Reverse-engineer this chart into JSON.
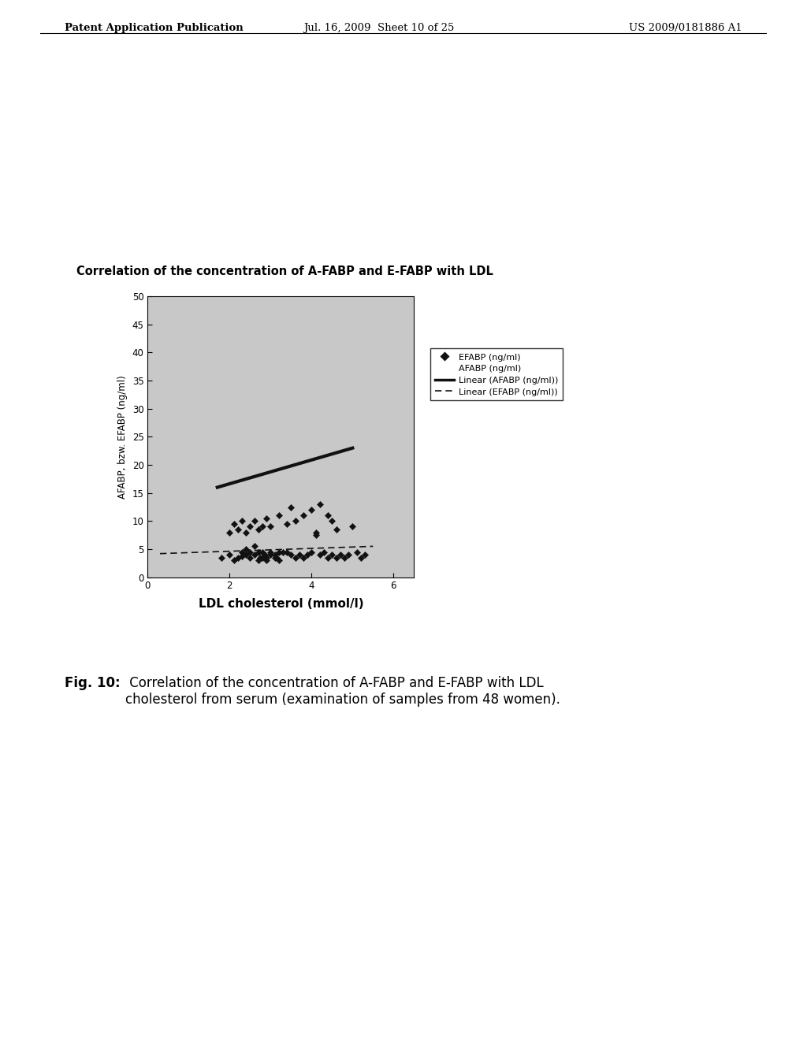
{
  "title": "Correlation of the concentration of A-FABP and E-FABP with LDL",
  "xlabel": "LDL cholesterol (mmol/l)",
  "ylabel": "AFABP, bzw. EFABP (ng/ml)",
  "xlim": [
    0,
    6.5
  ],
  "ylim": [
    0,
    50
  ],
  "xticks": [
    0,
    2,
    4,
    6
  ],
  "yticks": [
    0,
    5,
    10,
    15,
    20,
    25,
    30,
    35,
    40,
    45,
    50
  ],
  "background_color": "#c8c8c8",
  "efabp_x": [
    1.8,
    2.0,
    2.1,
    2.2,
    2.3,
    2.3,
    2.4,
    2.4,
    2.5,
    2.5,
    2.6,
    2.6,
    2.7,
    2.7,
    2.75,
    2.8,
    2.8,
    2.85,
    2.9,
    2.9,
    3.0,
    3.0,
    3.1,
    3.1,
    3.15,
    3.2,
    3.2,
    3.3,
    3.4,
    3.5,
    3.6,
    3.7,
    3.8,
    3.9,
    4.0,
    4.1,
    4.2,
    4.3,
    4.4,
    4.5,
    4.6,
    4.7,
    4.8,
    4.9,
    5.0,
    5.1,
    5.2,
    5.3
  ],
  "efabp_y": [
    3.5,
    4.0,
    3.0,
    3.5,
    4.5,
    3.8,
    5.0,
    4.0,
    3.5,
    4.5,
    5.5,
    4.0,
    3.0,
    4.5,
    3.5,
    4.5,
    3.5,
    4.0,
    3.5,
    3.0,
    4.5,
    4.0,
    3.5,
    4.0,
    3.5,
    4.5,
    3.0,
    4.5,
    4.5,
    4.0,
    3.5,
    4.0,
    3.5,
    4.0,
    4.5,
    7.5,
    4.0,
    4.5,
    3.5,
    4.0,
    3.5,
    4.0,
    3.5,
    4.0,
    9.0,
    4.5,
    3.5,
    4.0
  ],
  "afabp_x": [
    2.0,
    2.1,
    2.2,
    2.3,
    2.4,
    2.5,
    2.6,
    2.7,
    2.8,
    2.9,
    3.0,
    3.2,
    3.4,
    3.5,
    3.6,
    3.8,
    4.0,
    4.1,
    4.2,
    4.4,
    4.5,
    4.6
  ],
  "afabp_y": [
    8.0,
    9.5,
    8.5,
    10.0,
    8.0,
    9.0,
    10.0,
    8.5,
    9.0,
    10.5,
    9.0,
    11.0,
    9.5,
    12.5,
    10.0,
    11.0,
    12.0,
    8.0,
    13.0,
    11.0,
    10.0,
    8.5
  ],
  "afabp_line_x": [
    1.7,
    5.0
  ],
  "afabp_line_y": [
    16.0,
    23.0
  ],
  "efabp_line_x": [
    0.3,
    5.5
  ],
  "efabp_line_y": [
    4.2,
    5.5
  ],
  "legend_efabp": "EFABP (ng/ml)",
  "legend_afabp": "AFABP (ng/ml)",
  "legend_linear_afabp": "Linear (AFABP (ng/ml))",
  "legend_linear_efabp": "Linear (EFABP (ng/ml))",
  "header_left": "Patent Application Publication",
  "header_mid": "Jul. 16, 2009  Sheet 10 of 25",
  "header_right": "US 2009/0181886 A1",
  "fig_caption_bold": "Fig. 10:",
  "fig_caption_normal": " Correlation of the concentration of A-FABP and E-FABP with LDL\ncholesterol from serum (examination of samples from 48 women)."
}
